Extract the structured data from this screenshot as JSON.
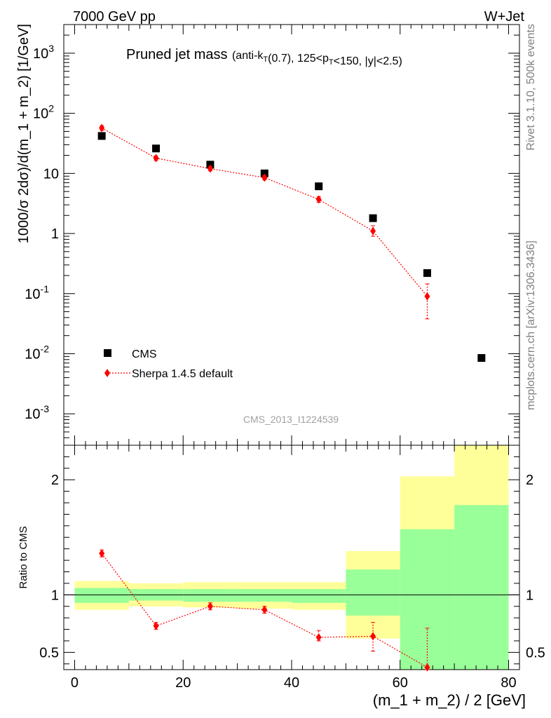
{
  "header": {
    "left": "7000 GeV pp",
    "right": "W+Jet"
  },
  "side_text": {
    "rivet": "Rivet 3.1.10,  500k events",
    "mcplots": "mcplots.cern.ch [arXiv:1306.3436]"
  },
  "chart_data": [
    {
      "type": "scatter",
      "title": "Pruned jet mass",
      "subtitle": "(anti-kT(0.7), 125<pT<150, |y|<2.5)",
      "watermark": "CMS_2013_I1224539",
      "ylabel": "1000/σ 2dσ)/d(m_1 + m_2) [1/GeV]",
      "yscale": "log",
      "ylim": [
        0.0003,
        3000
      ],
      "xlim": [
        -2,
        82
      ],
      "ytick_labels": [
        "10^-3",
        "10^-2",
        "10^-1",
        "1",
        "10",
        "10^2",
        "10^3"
      ],
      "legend_position": "bottom-left",
      "series": [
        {
          "name": "CMS",
          "color": "#000000",
          "marker": "square",
          "x": [
            5,
            15,
            25,
            35,
            45,
            55,
            65,
            75
          ],
          "y": [
            42,
            26,
            14,
            10,
            6.1,
            1.8,
            0.22,
            0.0085
          ]
        },
        {
          "name": "Sherpa 1.4.5 default",
          "color": "#ff0000",
          "marker": "diamond",
          "x": [
            5,
            15,
            25,
            35,
            45,
            55,
            65
          ],
          "y": [
            57,
            18,
            12,
            8.5,
            3.7,
            1.1,
            0.09
          ],
          "y_err_low": [
            52,
            16.5,
            11,
            7.8,
            3.3,
            0.9,
            0.038
          ],
          "y_err_high": [
            62,
            19.5,
            13,
            9.2,
            4.1,
            1.35,
            0.145
          ]
        }
      ]
    },
    {
      "type": "scatter",
      "ylabel": "Ratio to CMS",
      "xlabel": "(m_1 + m_2) / 2 [GeV]",
      "ylim": [
        0.35,
        2.3
      ],
      "xlim": [
        -2,
        82
      ],
      "xticks": [
        0,
        20,
        40,
        60,
        80
      ],
      "yticks": [
        0.5,
        1,
        2
      ],
      "reference_line": 1,
      "bands": [
        {
          "x0": 0,
          "x1": 10,
          "inner": [
            0.93,
            1.06
          ],
          "outer": [
            0.87,
            1.12
          ]
        },
        {
          "x0": 10,
          "x1": 20,
          "inner": [
            0.95,
            1.05
          ],
          "outer": [
            0.9,
            1.1
          ]
        },
        {
          "x0": 20,
          "x1": 30,
          "inner": [
            0.94,
            1.05
          ],
          "outer": [
            0.89,
            1.11
          ]
        },
        {
          "x0": 30,
          "x1": 40,
          "inner": [
            0.94,
            1.05
          ],
          "outer": [
            0.88,
            1.11
          ]
        },
        {
          "x0": 40,
          "x1": 50,
          "inner": [
            0.93,
            1.05
          ],
          "outer": [
            0.87,
            1.11
          ]
        },
        {
          "x0": 50,
          "x1": 60,
          "inner": [
            0.82,
            1.22
          ],
          "outer": [
            0.62,
            1.38
          ]
        },
        {
          "x0": 60,
          "x1": 70,
          "inner": [
            0.35,
            1.57
          ],
          "outer": [
            0.35,
            2.03
          ]
        },
        {
          "x0": 70,
          "x1": 80,
          "inner": [
            0.35,
            1.78
          ],
          "outer": [
            0.35,
            2.3
          ]
        }
      ],
      "series": [
        {
          "name": "Sherpa 1.4.5 default",
          "color": "#ff0000",
          "x": [
            5,
            15,
            25,
            35,
            45,
            55,
            65
          ],
          "y": [
            1.36,
            0.73,
            0.9,
            0.87,
            0.63,
            0.64,
            0.37
          ],
          "y_err_low": [
            1.33,
            0.7,
            0.87,
            0.84,
            0.6,
            0.51,
            0.35
          ],
          "y_err_high": [
            1.39,
            0.76,
            0.93,
            0.9,
            0.69,
            0.76,
            0.71
          ]
        }
      ]
    }
  ]
}
